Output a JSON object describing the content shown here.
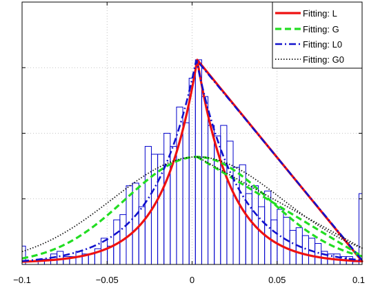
{
  "chart_data": {
    "type": "histogram-with-fitted-curves",
    "xlim": [
      -0.1,
      0.1
    ],
    "x_ticks": [
      -0.1,
      -0.05,
      0,
      0.05,
      0.1
    ],
    "x_tick_labels": [
      "−0.1",
      "−0.05",
      "0",
      "0.05",
      "0.1"
    ],
    "ylim": [
      0,
      1
    ],
    "y_tick_count": 4,
    "grid": true,
    "legend_position": "top-right",
    "histogram": {
      "color": "#0000cc",
      "bin_width": 0.0037,
      "bins": [
        {
          "x": -0.0998,
          "h": 0.07
        },
        {
          "x": -0.0887,
          "h": 0.02
        },
        {
          "x": -0.085,
          "h": 0.02
        },
        {
          "x": -0.0813,
          "h": 0.04
        },
        {
          "x": -0.0776,
          "h": 0.05
        },
        {
          "x": -0.0739,
          "h": 0.03
        },
        {
          "x": -0.0702,
          "h": 0.03
        },
        {
          "x": -0.0665,
          "h": 0.05
        },
        {
          "x": -0.0628,
          "h": 0.04
        },
        {
          "x": -0.0591,
          "h": 0.04
        },
        {
          "x": -0.0554,
          "h": 0.06
        },
        {
          "x": -0.0517,
          "h": 0.1
        },
        {
          "x": -0.048,
          "h": 0.07
        },
        {
          "x": -0.0443,
          "h": 0.17
        },
        {
          "x": -0.0406,
          "h": 0.19
        },
        {
          "x": -0.0369,
          "h": 0.3
        },
        {
          "x": -0.0332,
          "h": 0.31
        },
        {
          "x": -0.0295,
          "h": 0.22
        },
        {
          "x": -0.0258,
          "h": 0.45
        },
        {
          "x": -0.0221,
          "h": 0.42
        },
        {
          "x": -0.0184,
          "h": 0.42
        },
        {
          "x": -0.0147,
          "h": 0.5
        },
        {
          "x": -0.011,
          "h": 0.45
        },
        {
          "x": -0.0073,
          "h": 0.6
        },
        {
          "x": -0.0036,
          "h": 0.54
        },
        {
          "x": 0.0001,
          "h": 0.71
        },
        {
          "x": 0.0038,
          "h": 0.78
        },
        {
          "x": 0.0075,
          "h": 0.64
        },
        {
          "x": 0.0112,
          "h": 0.53
        },
        {
          "x": 0.0149,
          "h": 0.49
        },
        {
          "x": 0.0186,
          "h": 0.53
        },
        {
          "x": 0.0223,
          "h": 0.47
        },
        {
          "x": 0.026,
          "h": 0.37
        },
        {
          "x": 0.0297,
          "h": 0.38
        },
        {
          "x": 0.0334,
          "h": 0.27
        },
        {
          "x": 0.0371,
          "h": 0.3
        },
        {
          "x": 0.0408,
          "h": 0.22
        },
        {
          "x": 0.0445,
          "h": 0.28
        },
        {
          "x": 0.0482,
          "h": 0.17
        },
        {
          "x": 0.0519,
          "h": 0.21
        },
        {
          "x": 0.0556,
          "h": 0.18
        },
        {
          "x": 0.0593,
          "h": 0.13
        },
        {
          "x": 0.063,
          "h": 0.14
        },
        {
          "x": 0.0667,
          "h": 0.11
        },
        {
          "x": 0.0704,
          "h": 0.1
        },
        {
          "x": 0.0741,
          "h": 0.08
        },
        {
          "x": 0.0778,
          "h": 0.05
        },
        {
          "x": 0.0815,
          "h": 0.04
        },
        {
          "x": 0.0852,
          "h": 0.04
        },
        {
          "x": 0.0889,
          "h": 0.03
        },
        {
          "x": 0.0926,
          "h": 0.03
        },
        {
          "x": 0.0963,
          "h": 0.01
        },
        {
          "x": 0.1,
          "h": 0.27
        }
      ]
    },
    "series": [
      {
        "name": "Fitting: L",
        "color": "#ee1111",
        "dash": "solid",
        "width": 3.2,
        "model": "laplace",
        "center": 0.003,
        "peak": 0.78,
        "scale": 0.02,
        "tail_level": 0.006
      },
      {
        "name": "Fitting: G",
        "color": "#22dd22",
        "dash": "dashed",
        "width": 3.2,
        "model": "gaussian",
        "center": 0.003,
        "peak": 0.41,
        "sigma": 0.042,
        "tail_level": 0.003
      },
      {
        "name": "Fitting: L0",
        "color": "#1111cc",
        "dash": "dashdot",
        "width": 2.6,
        "model": "laplace",
        "center": 0.0025,
        "peak": 0.78,
        "scale": 0.025,
        "tail_level": 0.0
      },
      {
        "name": "Fitting: G0",
        "color": "#111111",
        "dash": "dotted",
        "width": 1.8,
        "model": "gaussian",
        "center": 0.003,
        "peak": 0.41,
        "sigma": 0.05,
        "tail_level": 0.0
      }
    ]
  }
}
